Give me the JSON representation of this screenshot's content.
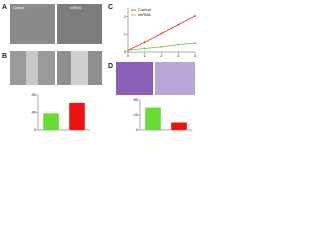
{
  "panel_labels": [
    "A",
    "B",
    "C",
    "D"
  ],
  "image_labels": [
    "Control",
    "shRNA"
  ],
  "chart_data": [
    {
      "type": "line",
      "xlim": [
        0,
        4
      ],
      "xticks": [
        0,
        1,
        2,
        3,
        4
      ],
      "ylim": [
        0,
        2.5
      ],
      "yticks": [
        0,
        1,
        2
      ],
      "legend": "upper left",
      "x": [
        0,
        1,
        2,
        3,
        4
      ],
      "series": [
        {
          "name": "Control",
          "color": "#ee2222",
          "values": [
            0.1,
            0.55,
            1.05,
            1.55,
            2.05
          ]
        },
        {
          "name": "shRNA",
          "color": "#55cc33",
          "values": [
            0.1,
            0.2,
            0.3,
            0.42,
            0.5
          ]
        }
      ]
    },
    {
      "type": "bar",
      "ylim": [
        0,
        80
      ],
      "yticks": [
        0,
        40,
        80
      ],
      "values": [
        38,
        62
      ],
      "colors": [
        "#66dd33",
        "#ee1111"
      ]
    },
    {
      "type": "bar",
      "ylim": [
        0,
        80
      ],
      "yticks": [
        0,
        40,
        80
      ],
      "values": [
        60,
        20
      ],
      "colors": [
        "#66dd33",
        "#ee1111"
      ]
    }
  ]
}
